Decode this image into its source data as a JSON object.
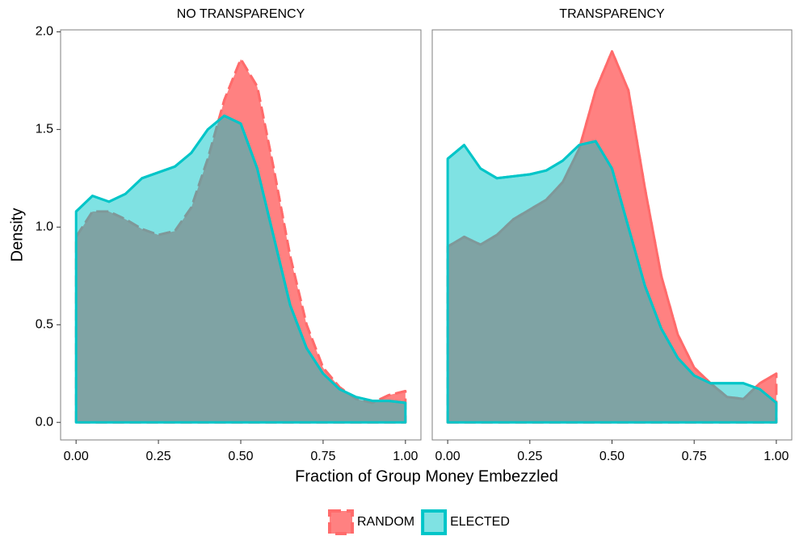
{
  "chart_data": {
    "type": "density",
    "x_label": "Fraction of Group Money Embezzled",
    "y_label": "Density",
    "x": [
      0,
      0.05,
      0.1,
      0.15,
      0.2,
      0.25,
      0.3,
      0.35,
      0.4,
      0.45,
      0.5,
      0.55,
      0.6,
      0.65,
      0.7,
      0.75,
      0.8,
      0.85,
      0.9,
      0.95,
      1.0
    ],
    "xlim": [
      -0.047,
      1.047
    ],
    "ylim": [
      -0.09,
      2.01
    ],
    "xticks": [
      {
        "value": 0,
        "label": "0.00"
      },
      {
        "value": 0.25,
        "label": "0.25"
      },
      {
        "value": 0.5,
        "label": "0.50"
      },
      {
        "value": 0.75,
        "label": "0.75"
      },
      {
        "value": 1,
        "label": "1.00"
      }
    ],
    "yticks": [
      {
        "value": 0,
        "label": "0.0"
      },
      {
        "value": 0.5,
        "label": "0.5"
      },
      {
        "value": 1,
        "label": "1.0"
      },
      {
        "value": 1.5,
        "label": "1.5"
      },
      {
        "value": 2,
        "label": "2.0"
      }
    ],
    "legend": "bottom",
    "facets": [
      {
        "title": "NO TRANSPARENCY",
        "series": [
          {
            "name": "RANDOM",
            "color": "#ff6b6b",
            "dashed": true,
            "values": [
              0.95,
              1.08,
              1.08,
              1.04,
              0.99,
              0.96,
              0.98,
              1.1,
              1.35,
              1.65,
              1.86,
              1.72,
              1.3,
              0.85,
              0.5,
              0.28,
              0.18,
              0.12,
              0.1,
              0.14,
              0.16
            ]
          },
          {
            "name": "ELECTED",
            "color": "#00c5c8",
            "dashed": false,
            "values": [
              1.08,
              1.16,
              1.13,
              1.17,
              1.25,
              1.28,
              1.31,
              1.38,
              1.5,
              1.57,
              1.53,
              1.3,
              0.95,
              0.6,
              0.38,
              0.25,
              0.17,
              0.13,
              0.11,
              0.11,
              0.1
            ]
          }
        ]
      },
      {
        "title": "TRANSPARENCY",
        "series": [
          {
            "name": "RANDOM",
            "color": "#ff6b6b",
            "dashed": true,
            "values": [
              0.9,
              0.95,
              0.91,
              0.96,
              1.04,
              1.09,
              1.14,
              1.23,
              1.4,
              1.7,
              1.9,
              1.7,
              1.2,
              0.75,
              0.45,
              0.28,
              0.2,
              0.13,
              0.12,
              0.2,
              0.25
            ]
          },
          {
            "name": "ELECTED",
            "color": "#00c5c8",
            "dashed": false,
            "values": [
              1.35,
              1.42,
              1.3,
              1.25,
              1.26,
              1.27,
              1.29,
              1.34,
              1.42,
              1.44,
              1.3,
              1.0,
              0.7,
              0.48,
              0.33,
              0.24,
              0.2,
              0.2,
              0.2,
              0.17,
              0.1
            ]
          }
        ]
      }
    ]
  }
}
